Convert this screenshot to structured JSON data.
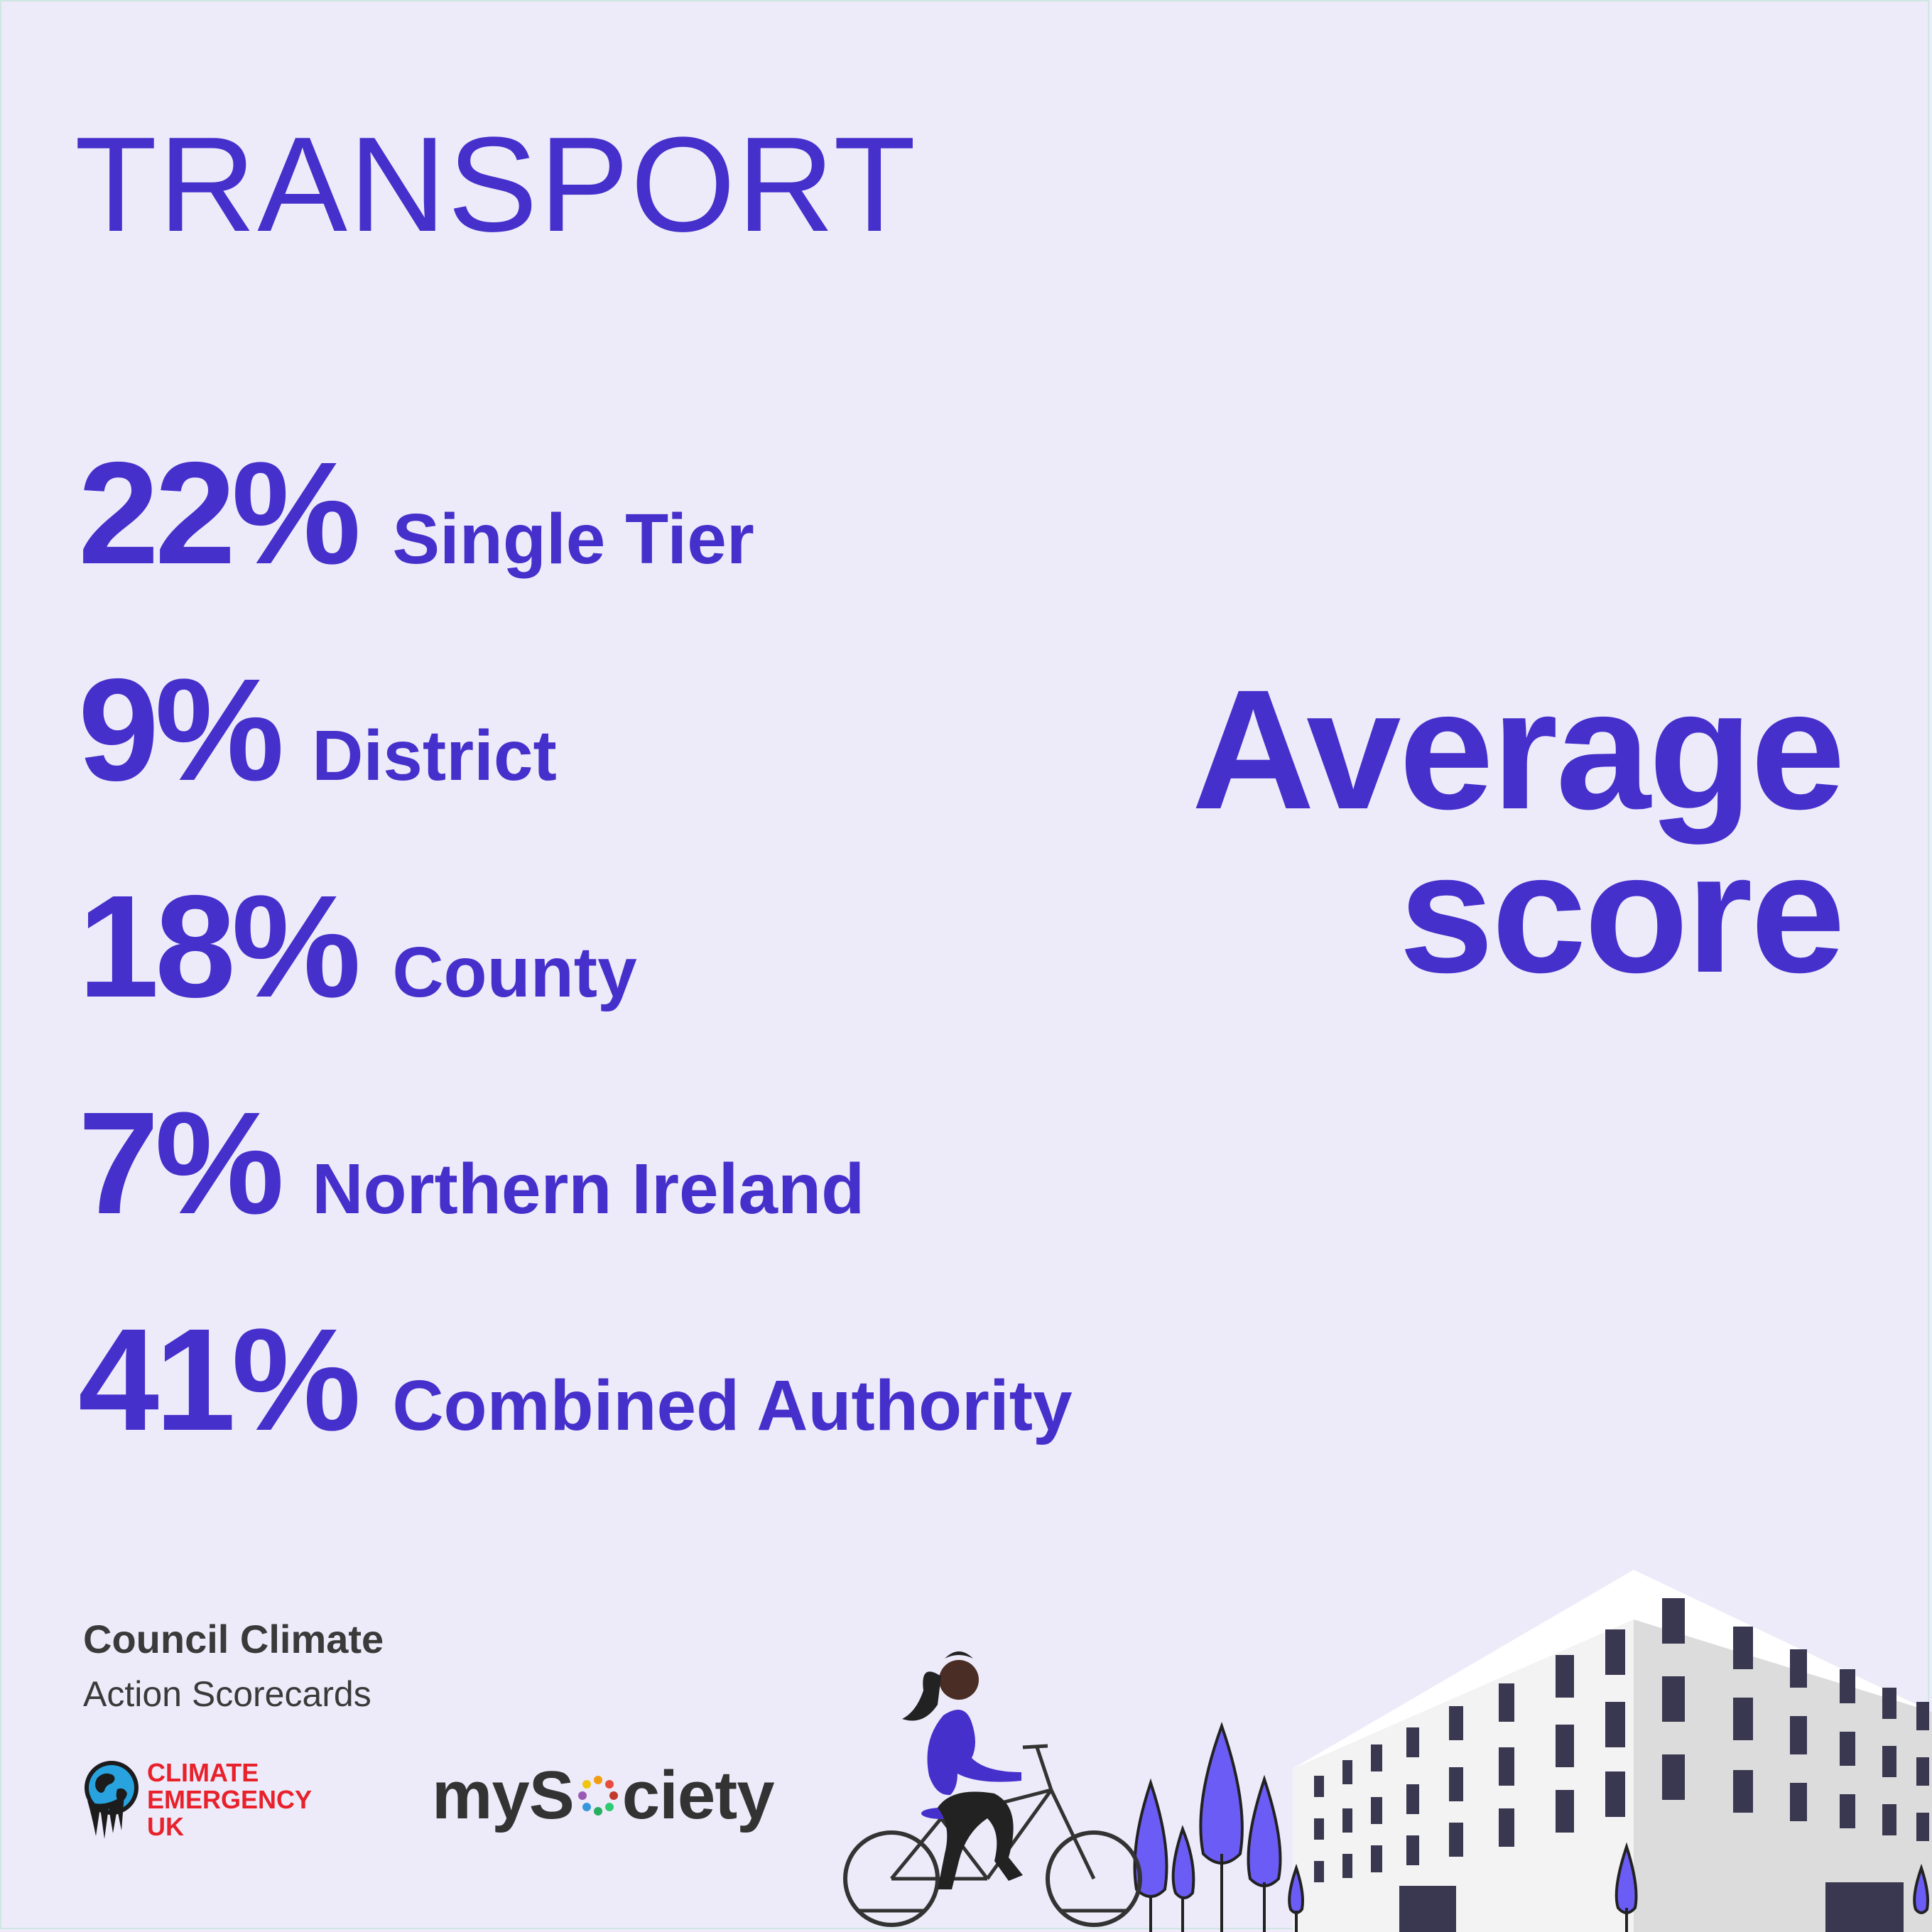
{
  "title": "TRANSPORT",
  "stats": [
    {
      "percent": "22%",
      "label": "Single Tier"
    },
    {
      "percent": "9%",
      "label": "District"
    },
    {
      "percent": "18%",
      "label": "County"
    },
    {
      "percent": "7%",
      "label": "Northern Ireland"
    },
    {
      "percent": "41%",
      "label": "Combined Authority"
    }
  ],
  "headline": {
    "line1": "Average",
    "line2": "score"
  },
  "branding": {
    "scorecards_line1": "Council Climate",
    "scorecards_line2": "Action Scorecards",
    "ceuk_line1": "CLIMATE",
    "ceuk_line2": "EMERGENCY",
    "ceuk_line3": "UK",
    "mysociety_pre": "myS",
    "mysociety_post": "ciety"
  },
  "colors": {
    "background": "#edebf9",
    "accent": "#4530cc",
    "ceuk_red": "#e8212b",
    "tree": "#6b5cf5"
  },
  "illustration": [
    "cyclist-icon",
    "tree-icon",
    "office-building-icon"
  ]
}
